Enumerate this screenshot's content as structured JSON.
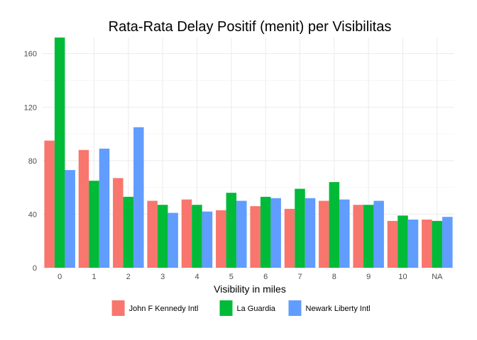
{
  "chart_data": {
    "type": "bar",
    "title": "Rata-Rata Delay Positif (menit) per Visibilitas",
    "xlabel": "Visibility in miles",
    "ylabel": "",
    "categories": [
      "0",
      "1",
      "2",
      "3",
      "4",
      "5",
      "6",
      "7",
      "8",
      "9",
      "10",
      "NA"
    ],
    "series": [
      {
        "name": "John F Kennedy Intl",
        "color": "#F8766D",
        "values": [
          95,
          88,
          67,
          50,
          51,
          43,
          46,
          44,
          50,
          47,
          35,
          36
        ]
      },
      {
        "name": "La Guardia",
        "color": "#00BA38",
        "values": [
          172,
          65,
          53,
          47,
          47,
          56,
          53,
          59,
          64,
          47,
          39,
          35
        ]
      },
      {
        "name": "Newark Liberty Intl",
        "color": "#619CFF",
        "values": [
          73,
          89,
          105,
          41,
          42,
          50,
          52,
          52,
          51,
          50,
          36,
          38
        ]
      }
    ],
    "ylim": [
      0,
      172
    ],
    "yticks": [
      0,
      40,
      80,
      120,
      160
    ],
    "grid": true,
    "legend_position": "bottom"
  }
}
